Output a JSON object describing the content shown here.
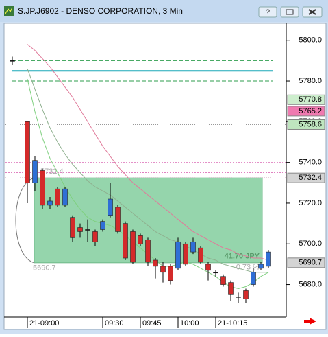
{
  "window_title": "S.JP.J6902 - DENSO CORPORATION, 3 Min",
  "chart_data": {
    "type": "candlestick",
    "categories": [
      null,
      null,
      "21-09:00",
      null,
      null,
      null,
      null,
      null,
      null,
      null,
      null,
      null,
      "09:30",
      null,
      null,
      null,
      null,
      "09:45",
      null,
      null,
      null,
      null,
      "10:00",
      null,
      null,
      null,
      null,
      "21-10:15",
      null,
      null,
      null,
      null,
      null,
      null,
      null
    ],
    "open": [
      5790,
      null,
      5760,
      5730,
      5736,
      5719,
      5727,
      5719,
      5713,
      5708,
      5707,
      5706,
      5707,
      5714,
      5718,
      5710,
      5706,
      5704,
      5702,
      5692,
      5689,
      5689,
      5688,
      5700,
      5696,
      5698,
      5690,
      5686,
      5684,
      5681,
      5674,
      5677,
      5680,
      5688,
      5689
    ],
    "high": [
      5792,
      null,
      5760,
      5743,
      5737,
      5723,
      5728,
      5728,
      5714,
      5710,
      5712,
      5707,
      5712,
      5730,
      5719,
      5711,
      5707,
      5705,
      5703,
      5693,
      5691,
      5690,
      5703,
      5701,
      5703,
      5699,
      5691,
      5687,
      5685,
      5682,
      5676,
      5678,
      5688,
      5691,
      5697
    ],
    "low": [
      5788,
      null,
      5720,
      5726,
      5717,
      5717,
      5718,
      5718,
      5701,
      5703,
      5701,
      5699,
      5706,
      5713,
      5705,
      5692,
      5690,
      5699,
      5689,
      5683,
      5681,
      5680,
      5687,
      5689,
      5695,
      5690,
      5682,
      5684,
      5679,
      5672,
      5671,
      5671,
      5679,
      5687,
      5688
    ],
    "close": [
      5790,
      null,
      5730,
      5741,
      5719,
      5721,
      5719,
      5727,
      5703,
      5706,
      5707,
      5701,
      5711,
      5722,
      5706,
      5693,
      5691,
      5700,
      5691,
      5689,
      5686,
      5682,
      5701,
      5690,
      5701,
      5691,
      5687,
      5686,
      5680,
      5675,
      5674,
      5673,
      5686,
      5690,
      5696
    ],
    "up_color": "#2f6fd6",
    "down_color": "#d42a2a",
    "ylim": [
      5664,
      5808
    ],
    "yticks": [
      {
        "value": 5680,
        "label": "5680.0"
      },
      {
        "value": 5700,
        "label": "5700.0"
      },
      {
        "value": 5720,
        "label": "5720.0"
      },
      {
        "value": 5740,
        "label": "5740.0"
      },
      {
        "value": 5760,
        "label": "5760.0"
      },
      {
        "value": 5780,
        "label": "5780.0"
      },
      {
        "value": 5800,
        "label": "5800.0"
      }
    ],
    "moving_averages": [
      {
        "color": "#e07a9a",
        "values": [
          5803,
          null,
          5798,
          5795,
          5791,
          5787,
          5782,
          5777,
          5772,
          5766,
          5760,
          5754,
          5748,
          5743,
          5738,
          5734,
          5730,
          5727,
          5724,
          5721,
          5718,
          5715,
          5712,
          5709,
          5706,
          5704,
          5702,
          5700,
          5698,
          5697,
          5695,
          5694,
          5693,
          5693,
          5692
        ]
      },
      {
        "color": "#8fb08f",
        "values": [
          5800,
          null,
          5786,
          5776,
          5766,
          5757,
          5750,
          5744,
          5739,
          5735,
          5731,
          5728,
          5726,
          5724,
          5721,
          5718,
          5715,
          5712,
          5709,
          5706,
          5704,
          5702,
          5701,
          5699,
          5697,
          5695,
          5693,
          5692,
          5690,
          5689,
          5688,
          5687,
          5686,
          5686,
          5686
        ]
      },
      {
        "color": "#7fd07f",
        "values": [
          5797,
          null,
          5781,
          5765,
          5752,
          5742,
          5735,
          5728,
          5722,
          5717,
          5713,
          5711,
          5710,
          5709,
          5707,
          5704,
          5701,
          5698,
          5695,
          5692,
          5689,
          5689,
          5690,
          5691,
          5690,
          5688,
          5686,
          5684,
          5681,
          5679,
          5678,
          5679,
          5681,
          5684,
          5686
        ]
      }
    ],
    "lines": [
      {
        "value": 5790,
        "color": "#2e9e4e",
        "dash": "6 3"
      },
      {
        "value": 5785,
        "color": "#1ba8b8",
        "dash": "none"
      },
      {
        "value": 5780,
        "color": "#2e9e4e",
        "dash": "6 3"
      },
      {
        "value": 5758.6,
        "color": "#999999",
        "dash": "1 2"
      },
      {
        "value": 5740,
        "color": "#e080c0",
        "dash": "2 2"
      },
      {
        "value": 5735,
        "color": "#e080c0",
        "dash": "2 2"
      },
      {
        "value": 5732.4,
        "color": "#c080a0",
        "dash": "1 2"
      }
    ],
    "price_labels": [
      {
        "value": 5770.8,
        "color": "#cdeecd"
      },
      {
        "value": 5765.2,
        "color": "#f07ab0"
      },
      {
        "value": 5758.6,
        "color": "#bfe5bf"
      },
      {
        "value": 5732.4,
        "color": "#d4d4d4"
      },
      {
        "value": 5690.7,
        "color": "#d4d4d4"
      }
    ],
    "range_box": {
      "top": 5732.4,
      "bottom": 5690.7,
      "color": "#8fd3a8",
      "size_label": "41.70 JPY",
      "percent_label": "0.73 %"
    }
  }
}
